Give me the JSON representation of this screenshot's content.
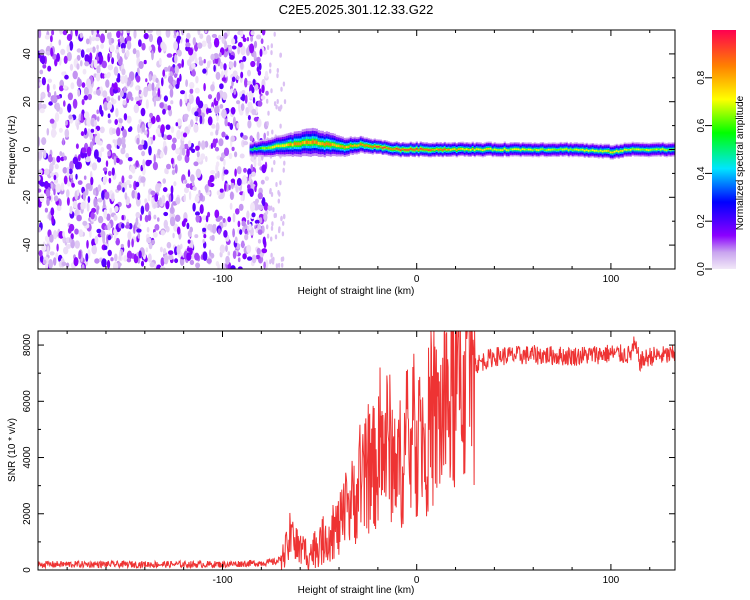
{
  "title": "C2E5.2025.301.12.33.G22",
  "chart_data": [
    {
      "type": "heatmap",
      "title": "C2E5.2025.301.12.33.G22",
      "xlabel": "Height of straight line (km)",
      "ylabel": "Frequency (Hz)",
      "xlim": [
        -195,
        133
      ],
      "ylim": [
        -50,
        50
      ],
      "xticks": [
        -100,
        0,
        100
      ],
      "xtick_labels": [
        "-100",
        "0",
        "100"
      ],
      "yticks": [
        -40,
        -20,
        0,
        20,
        40
      ],
      "ytick_labels": [
        "-40",
        "-20",
        "0",
        "20",
        "40"
      ],
      "noise_region_x": [
        -195,
        -77
      ],
      "signal_onset_x": -86,
      "ridge": {
        "x": [
          -86,
          -75,
          -65,
          -55,
          -45,
          -38,
          -30,
          -20,
          -10,
          0,
          20,
          40,
          60,
          80,
          100,
          110,
          120,
          133
        ],
        "center_hz": [
          0,
          1,
          2,
          3,
          2,
          1,
          2,
          1,
          0,
          0,
          0,
          0,
          0,
          0,
          -1,
          0,
          0,
          0
        ],
        "halfwidth_hz": [
          3,
          4,
          5,
          6,
          5,
          4,
          3.5,
          3,
          3,
          3,
          3,
          3,
          3,
          3,
          3,
          3,
          3,
          3
        ],
        "peak_amplitude": [
          0.55,
          0.75,
          0.85,
          0.9,
          0.88,
          0.85,
          0.9,
          0.95,
          0.98,
          1.0,
          0.85,
          0.75,
          0.72,
          0.7,
          0.8,
          0.72,
          0.7,
          0.7
        ]
      },
      "colorbar": {
        "label": "Normalized spectral amplitude",
        "range": [
          0,
          1
        ],
        "ticks": [
          0.0,
          0.2,
          0.4,
          0.6,
          0.8
        ],
        "tick_labels": [
          "0.0",
          "0.2",
          "0.4",
          "0.6",
          "0.8"
        ]
      }
    },
    {
      "type": "line",
      "xlabel": "Height of straight line (km)",
      "ylabel": "SNR (10 * v/v)",
      "xlim": [
        -195,
        133
      ],
      "ylim": [
        0,
        8500
      ],
      "xticks": [
        -100,
        0,
        100
      ],
      "xtick_labels": [
        "-100",
        "0",
        "100"
      ],
      "yticks": [
        0,
        2000,
        4000,
        6000,
        8000
      ],
      "ytick_labels": [
        "0",
        "2000",
        "4000",
        "6000",
        "8000"
      ],
      "color": "#ee3333",
      "series": [
        {
          "name": "SNR",
          "x": [
            -195,
            -150,
            -100,
            -80,
            -72,
            -68,
            -65,
            -60,
            -55,
            -50,
            -45,
            -40,
            -35,
            -30,
            -25,
            -20,
            -15,
            -10,
            -5,
            0,
            10,
            20,
            25,
            30,
            40,
            60,
            80,
            100,
            110,
            112,
            115,
            120,
            133
          ],
          "values": [
            200,
            200,
            200,
            250,
            300,
            500,
            1200,
            700,
            600,
            900,
            1300,
            1500,
            2200,
            2800,
            3400,
            3800,
            4600,
            3600,
            4300,
            4600,
            5200,
            6300,
            6900,
            7300,
            7600,
            7650,
            7600,
            7700,
            7650,
            8000,
            7400,
            7600,
            7650
          ]
        }
      ]
    }
  ]
}
